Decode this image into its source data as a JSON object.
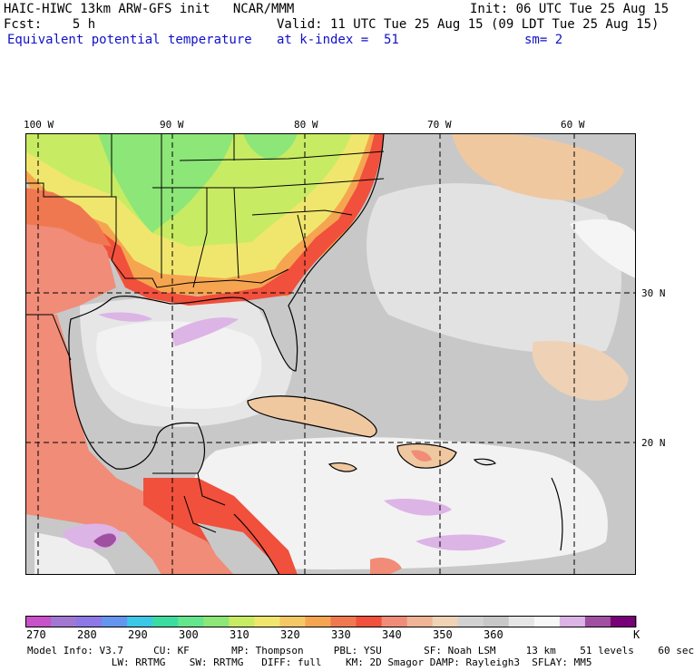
{
  "header": {
    "line1_left": "HAIC-HIWC 13km ARW-GFS init   NCAR/MMM",
    "line1_right": "Init: 06 UTC Tue 25 Aug 15",
    "line2_left": "Fcst:    5 h",
    "line2_right": "Valid: 11 UTC Tue 25 Aug 15 (09 LDT Tue 25 Aug 15)",
    "field_name": "Equivalent potential temperature",
    "level": "at k-index =  51",
    "smoothing": "sm= 2"
  },
  "map": {
    "lon_labels": [
      "100 W",
      "90 W",
      "80 W",
      "70 W",
      "60 W"
    ],
    "lat_labels": [
      "30 N",
      "20 N"
    ],
    "colors": {
      "ocean_gray": "#c8c8c8",
      "light_gray": "#e6e6e6",
      "white": "#f7f7f7",
      "lavender": "#dcb4e6",
      "peach": "#f0c8a0",
      "salmon": "#f08c78",
      "red": "#f0503c",
      "orange": "#f5a550",
      "yellow": "#f0e66e",
      "yellowgreen": "#c8eb64",
      "green": "#8ce678"
    }
  },
  "colorbar": {
    "unit": "K",
    "tick_labels": [
      "270",
      "280",
      "290",
      "300",
      "310",
      "320",
      "330",
      "340",
      "350",
      "360"
    ],
    "colors": [
      "#c850c8",
      "#a078d2",
      "#8c78e6",
      "#6496f0",
      "#3cc8e6",
      "#3cdca0",
      "#64e68c",
      "#8ce678",
      "#c8eb64",
      "#f0e66e",
      "#f5c864",
      "#f5a550",
      "#f07850",
      "#f0503c",
      "#f08c78",
      "#f0b496",
      "#f0d2b4",
      "#d2d2d2",
      "#c8c8c8",
      "#e6e6e6",
      "#f7f7f7",
      "#dcb4e6",
      "#a050a0",
      "#780078"
    ]
  },
  "footer": {
    "line1": "Model Info: V3.7     CU: KF       MP: Thompson     PBL: YSU       SF: Noah LSM     13 km    51 levels    60 sec",
    "line2": "              LW: RRTMG    SW: RRTMG   DIFF: full    KM: 2D Smagor DAMP: Rayleigh3  SFLAY: MM5"
  }
}
